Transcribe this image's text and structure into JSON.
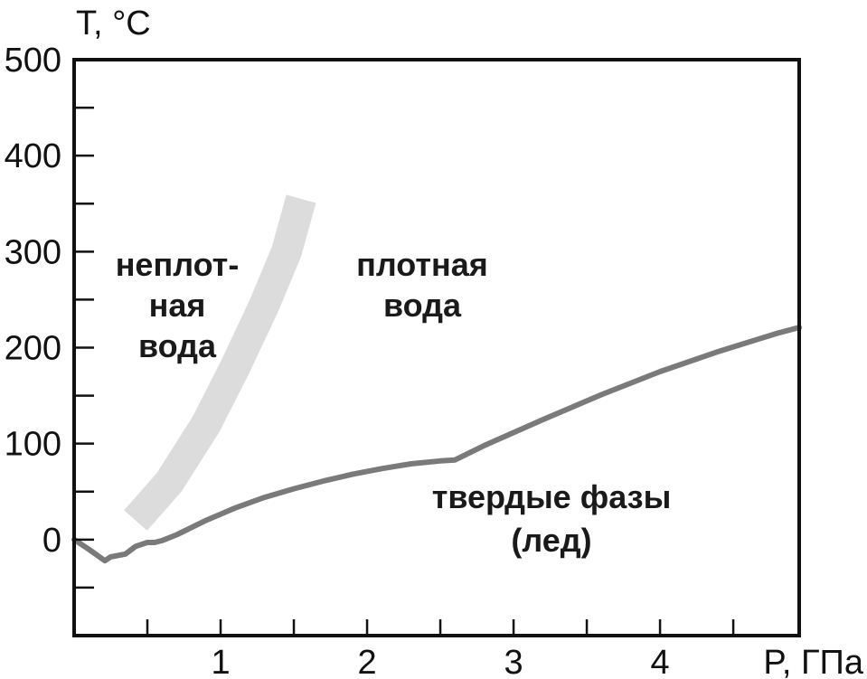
{
  "chart_data": {
    "type": "line",
    "title": "",
    "ylabel": "T, °C",
    "xlabel": "P, ГПа",
    "xlim": [
      0,
      4.95
    ],
    "ylim": [
      -100,
      500
    ],
    "xticks_major": [
      1,
      2,
      3,
      4
    ],
    "xticks_all": [
      0.5,
      1,
      1.5,
      2,
      2.5,
      3,
      3.5,
      4,
      4.5
    ],
    "xtick_labels": [
      "1",
      "2",
      "3",
      "4"
    ],
    "yticks_major": [
      0,
      100,
      200,
      300,
      400,
      500
    ],
    "yticks_all": [
      -50,
      0,
      50,
      100,
      150,
      200,
      250,
      300,
      350,
      400,
      450,
      500
    ],
    "ytick_labels": [
      "0",
      "100",
      "200",
      "300",
      "400",
      "500"
    ],
    "grid": false,
    "colors": {
      "melting_curve": "#7a7a7a",
      "transition_band": "#dcdcdc",
      "frame": "#111111"
    },
    "series": [
      {
        "kind": "line",
        "points": [
          [
            0.0,
            0
          ],
          [
            0.1,
            -10
          ],
          [
            0.21,
            -22
          ],
          [
            0.25,
            -18
          ],
          [
            0.35,
            -15
          ],
          [
            0.42,
            -7
          ],
          [
            0.5,
            -3
          ],
          [
            0.55,
            -3
          ],
          [
            0.6,
            -1
          ],
          [
            0.7,
            5
          ],
          [
            0.9,
            20
          ],
          [
            1.1,
            33
          ],
          [
            1.3,
            44
          ],
          [
            1.5,
            53
          ],
          [
            1.7,
            61
          ],
          [
            1.9,
            68
          ],
          [
            2.1,
            74
          ],
          [
            2.3,
            79
          ],
          [
            2.5,
            82
          ],
          [
            2.6,
            83
          ],
          [
            2.8,
            98
          ],
          [
            3.2,
            125
          ],
          [
            3.6,
            151
          ],
          [
            4.0,
            175
          ],
          [
            4.4,
            196
          ],
          [
            4.8,
            215
          ],
          [
            4.95,
            221
          ]
        ]
      },
      {
        "kind": "band",
        "points": [
          [
            0.42,
            20
          ],
          [
            0.65,
            60
          ],
          [
            0.9,
            120
          ],
          [
            1.1,
            180
          ],
          [
            1.3,
            245
          ],
          [
            1.45,
            300
          ],
          [
            1.55,
            355
          ]
        ]
      }
    ],
    "annotations": [
      {
        "lines": [
          "неплот-",
          "ная",
          "вода"
        ]
      },
      {
        "lines": [
          "плотная",
          "вода"
        ]
      },
      {
        "lines": [
          "твердые фазы",
          "(лед)"
        ]
      }
    ]
  }
}
